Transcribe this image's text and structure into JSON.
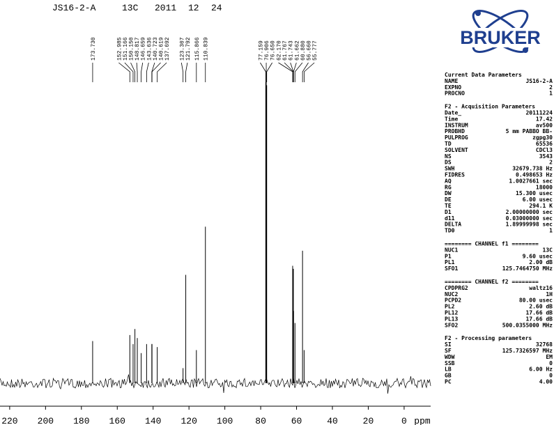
{
  "header": [
    "JS16-2-A",
    "13C",
    "2011",
    "12",
    "24"
  ],
  "logo": "BRUKER",
  "chart_data": {
    "type": "spectrum",
    "x_label": "ppm",
    "color": "#000000",
    "xlim": [
      225.4,
      -14.8
    ],
    "xticks": [
      220,
      200,
      180,
      160,
      140,
      120,
      100,
      80,
      60,
      40,
      20,
      0
    ],
    "ylim": [
      0,
      100
    ],
    "x": [
      173.73,
      152.985,
      151.166,
      150.15,
      148.817,
      146.659,
      143.636,
      140.723,
      140.619,
      137.692,
      123.307,
      121.792,
      115.866,
      110.839,
      77.159,
      76.906,
      76.65,
      62.17,
      61.767,
      61.743,
      61.662,
      60.88,
      56.66,
      55.777
    ],
    "values": [
      14,
      16,
      13,
      18,
      15,
      10,
      13,
      13,
      13,
      12,
      5,
      36,
      11,
      52,
      100,
      100,
      99,
      39,
      38,
      24,
      24,
      20,
      44,
      11
    ],
    "value_labels": [
      "173.730",
      "152.985",
      "151.166",
      "150.150",
      "148.817",
      "146.659",
      "143.636",
      "140.723",
      "140.619",
      "137.692",
      "123.307",
      "121.792",
      "115.866",
      "110.839",
      "77.159",
      "76.906",
      "76.650",
      "62.170",
      "61.767",
      "61.743",
      "61.662",
      "60.880",
      "56.660",
      "55.777"
    ]
  },
  "parameters": [
    {
      "title": "Current Data Parameters",
      "rows": [
        [
          "NAME",
          "JS16-2-A"
        ],
        [
          "EXPNO",
          "2"
        ],
        [
          "PROCNO",
          "1"
        ]
      ]
    },
    {
      "title": "F2 - Acquisition Parameters",
      "rows": [
        [
          "Date_",
          "20111224"
        ],
        [
          "Time",
          "17.42"
        ],
        [
          "INSTRUM",
          "av500"
        ],
        [
          "PROBHD",
          "5 mm PABBO BB-"
        ],
        [
          "PULPROG",
          "zgpg30"
        ],
        [
          "TD",
          "65536"
        ],
        [
          "SOLVENT",
          "CDCl3"
        ],
        [
          "NS",
          "3543"
        ],
        [
          "DS",
          "2"
        ],
        [
          "SWH",
          "32679.738 Hz"
        ],
        [
          "FIDRES",
          "0.498653 Hz"
        ],
        [
          "AQ",
          "1.0027661 sec"
        ],
        [
          "RG",
          "18000"
        ],
        [
          "DW",
          "15.300 usec"
        ],
        [
          "DE",
          "6.00 usec"
        ],
        [
          "TE",
          "294.1 K"
        ],
        [
          "D1",
          "2.00000000 sec"
        ],
        [
          "d11",
          "0.03000000 sec"
        ],
        [
          "DELTA",
          "1.89999998 sec"
        ],
        [
          "TD0",
          "1"
        ]
      ]
    },
    {
      "title": "======== CHANNEL f1 ========",
      "rows": [
        [
          "NUC1",
          "13C"
        ],
        [
          "P1",
          "9.60 usec"
        ],
        [
          "PL1",
          "2.00 dB"
        ],
        [
          "SFO1",
          "125.7464750 MHz"
        ]
      ]
    },
    {
      "title": "======== CHANNEL f2 ========",
      "rows": [
        [
          "CPDPRG2",
          "waltz16"
        ],
        [
          "NUC2",
          "1H"
        ],
        [
          "PCPD2",
          "80.00 usec"
        ],
        [
          "PL2",
          "2.60 dB"
        ],
        [
          "PL12",
          "17.66 dB"
        ],
        [
          "PL13",
          "17.66 dB"
        ],
        [
          "SFO2",
          "500.0355000 MHz"
        ]
      ]
    },
    {
      "title": "F2 - Processing parameters",
      "rows": [
        [
          "SI",
          "32768"
        ],
        [
          "SF",
          "125.7326597 MHz"
        ],
        [
          "WDW",
          "EM"
        ],
        [
          "SSB",
          "0"
        ],
        [
          "LB",
          "6.00 Hz"
        ],
        [
          "GB",
          "0"
        ],
        [
          "PC",
          "4.00"
        ]
      ]
    }
  ]
}
